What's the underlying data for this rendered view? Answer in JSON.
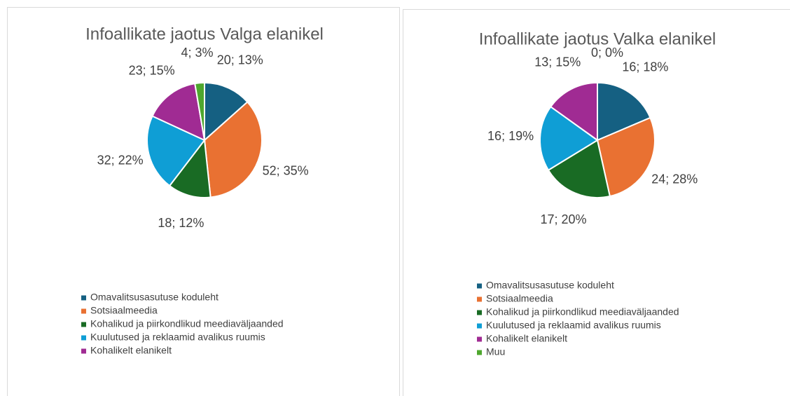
{
  "chart_data": [
    {
      "type": "pie",
      "title": "Infoallikate jaotus Valga elanikel",
      "categories": [
        "Omavalitsusasutuse koduleht",
        "Sotsiaalmeedia",
        "Kohalikud ja piirkondlikud meediaväljaanded",
        "Kuulutused ja reklaamid avalikus ruumis",
        "Kohalikelt elanikelt",
        null
      ],
      "values": [
        20,
        52,
        18,
        32,
        23,
        4
      ],
      "value_labels": [
        "20; 13%",
        "52; 35%",
        "18; 12%",
        "32; 22%",
        "23; 15%",
        "4; 3%"
      ],
      "colors": [
        "#156082",
        "#e97132",
        "#196b24",
        "#0f9ed5",
        "#a02b93",
        "#4ea72e"
      ],
      "legend": "bottom"
    },
    {
      "type": "pie",
      "title": "Infoallikate jaotus Valka elanikel",
      "categories": [
        "Omavalitsusasutuse koduleht",
        "Sotsiaalmeedia",
        "Kohalikud ja piirkondlikud meediaväljaanded",
        "Kuulutused ja reklaamid avalikus ruumis",
        "Kohalikelt elanikelt",
        "Muu"
      ],
      "values": [
        16,
        24,
        17,
        16,
        13,
        0
      ],
      "value_labels": [
        "16; 18%",
        "24; 28%",
        "17; 20%",
        "16; 19%",
        "13; 15%",
        "0; 0%"
      ],
      "colors": [
        "#156082",
        "#e97132",
        "#196b24",
        "#0f9ed5",
        "#a02b93",
        "#4ea72e"
      ],
      "legend": "bottom"
    }
  ]
}
